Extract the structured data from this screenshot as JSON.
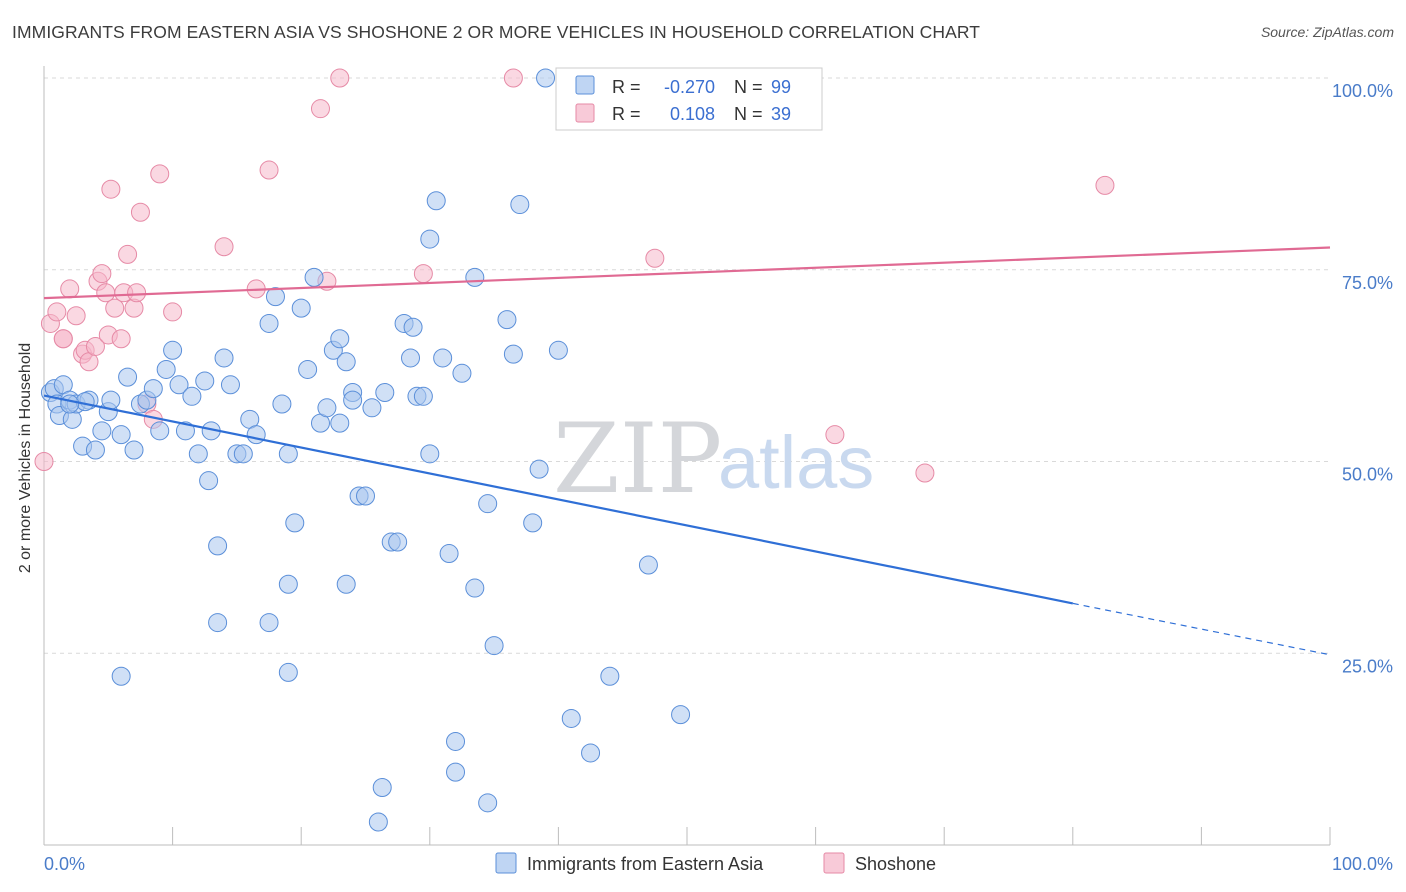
{
  "header": {
    "title": "IMMIGRANTS FROM EASTERN ASIA VS SHOSHONE 2 OR MORE VEHICLES IN HOUSEHOLD CORRELATION CHART",
    "source": "Source: ZipAtlas.com"
  },
  "watermark": {
    "zip": "ZIP",
    "atlas": "atlas"
  },
  "colors": {
    "blue_fill": "#a9c7ef",
    "blue_stroke": "#5b8fd9",
    "blue_line": "#2f6fd6",
    "pink_fill": "#f5b8cb",
    "pink_stroke": "#e68aa6",
    "pink_line": "#e06a93",
    "grid": "#d9d9d9",
    "tick_text": "#4a7cc9"
  },
  "legend_stats": {
    "rows": [
      {
        "r_label": "R =",
        "r_value": "-0.270",
        "n_label": "N =",
        "n_value": "99"
      },
      {
        "r_label": "R =",
        "r_value": "0.108",
        "n_label": "N =",
        "n_value": "39"
      }
    ]
  },
  "chart_data": {
    "type": "scatter",
    "title": "IMMIGRANTS FROM EASTERN ASIA VS SHOSHONE 2 OR MORE VEHICLES IN HOUSEHOLD CORRELATION CHART",
    "xlabel": "",
    "ylabel": "2 or more Vehicles in Household",
    "xlim": [
      0,
      100
    ],
    "ylim": [
      0,
      100
    ],
    "x_tick_labels": [
      "0.0%",
      "100.0%"
    ],
    "y_tick_values": [
      25,
      50,
      75,
      100
    ],
    "y_tick_labels": [
      "25.0%",
      "50.0%",
      "75.0%",
      "100.0%"
    ],
    "grid": "horizontal dashed",
    "legend_placement": "bottom",
    "series": [
      {
        "name": "Immigrants from Eastern Asia",
        "color": "#a9c7ef",
        "r": -0.27,
        "n": 99,
        "trend": {
          "x0": 0,
          "y0": 58.6,
          "x1": 80,
          "y1": 31.5,
          "dashed_to_x": 100,
          "dashed_to_y": 24.8
        },
        "points": [
          [
            0.5,
            59
          ],
          [
            0.8,
            59.5
          ],
          [
            1.0,
            57.5
          ],
          [
            1.2,
            56
          ],
          [
            1.5,
            60
          ],
          [
            2.0,
            58
          ],
          [
            2.2,
            55.5
          ],
          [
            2.5,
            57.5
          ],
          [
            3.0,
            52
          ],
          [
            3.5,
            58
          ],
          [
            3.2,
            57.8
          ],
          [
            4.0,
            51.5
          ],
          [
            4.5,
            54
          ],
          [
            5.0,
            56.5
          ],
          [
            5.2,
            58
          ],
          [
            6.0,
            53.5
          ],
          [
            6.5,
            61
          ],
          [
            7.0,
            51.5
          ],
          [
            7.5,
            57.5
          ],
          [
            8.0,
            58
          ],
          [
            8.5,
            59.5
          ],
          [
            9.0,
            54
          ],
          [
            9.5,
            62
          ],
          [
            10.0,
            64.5
          ],
          [
            10.5,
            60
          ],
          [
            11.0,
            54
          ],
          [
            11.5,
            58.5
          ],
          [
            12.0,
            51
          ],
          [
            12.5,
            60.5
          ],
          [
            12.8,
            47.5
          ],
          [
            13.0,
            54
          ],
          [
            13.5,
            39
          ],
          [
            14.0,
            63.5
          ],
          [
            14.5,
            60
          ],
          [
            15.0,
            51
          ],
          [
            15.5,
            51
          ],
          [
            16.0,
            55.5
          ],
          [
            16.5,
            53.5
          ],
          [
            17.5,
            68
          ],
          [
            18.0,
            71.5
          ],
          [
            18.5,
            57.5
          ],
          [
            19.0,
            51
          ],
          [
            19.0,
            34
          ],
          [
            19.5,
            42
          ],
          [
            20.0,
            70
          ],
          [
            20.5,
            62
          ],
          [
            21.0,
            74
          ],
          [
            21.5,
            55
          ],
          [
            22.0,
            57
          ],
          [
            22.5,
            64.5
          ],
          [
            23.0,
            66
          ],
          [
            23.5,
            34
          ],
          [
            23.5,
            63
          ],
          [
            24.0,
            59
          ],
          [
            24.5,
            45.5
          ],
          [
            25.0,
            45.5
          ],
          [
            25.5,
            57
          ],
          [
            26.0,
            3
          ],
          [
            26.3,
            7.5
          ],
          [
            26.5,
            59
          ],
          [
            27.0,
            39.5
          ],
          [
            27.5,
            39.5
          ],
          [
            28.0,
            68
          ],
          [
            28.5,
            63.5
          ],
          [
            28.7,
            67.5
          ],
          [
            29.0,
            58.5
          ],
          [
            29.5,
            58.5
          ],
          [
            30.0,
            51
          ],
          [
            30.5,
            84
          ],
          [
            30.0,
            79
          ],
          [
            31.0,
            63.5
          ],
          [
            31.5,
            38
          ],
          [
            32.0,
            13.5
          ],
          [
            32.0,
            9.5
          ],
          [
            32.5,
            61.5
          ],
          [
            33.5,
            33.5
          ],
          [
            33.5,
            74
          ],
          [
            34.5,
            5.5
          ],
          [
            34.5,
            44.5
          ],
          [
            35.0,
            26
          ],
          [
            36.0,
            68.5
          ],
          [
            36.5,
            64
          ],
          [
            37.0,
            83.5
          ],
          [
            38.0,
            42
          ],
          [
            38.5,
            49
          ],
          [
            39.0,
            100
          ],
          [
            40.0,
            64.5
          ],
          [
            41.0,
            16.5
          ],
          [
            42.5,
            12
          ],
          [
            44.0,
            22
          ],
          [
            47.0,
            36.5
          ],
          [
            49.5,
            17
          ],
          [
            2.0,
            57.5
          ],
          [
            6.0,
            22
          ],
          [
            13.5,
            29
          ],
          [
            17.5,
            29
          ],
          [
            19.0,
            22.5
          ],
          [
            24.0,
            58
          ],
          [
            23.0,
            55
          ]
        ]
      },
      {
        "name": "Shoshone",
        "color": "#f5b8cb",
        "r": 0.108,
        "n": 39,
        "trend": {
          "x0": 0,
          "y0": 71.3,
          "x1": 100,
          "y1": 77.9
        },
        "points": [
          [
            0.0,
            50
          ],
          [
            0.5,
            68
          ],
          [
            1.0,
            69.5
          ],
          [
            1.5,
            66
          ],
          [
            2.0,
            72.5
          ],
          [
            2.5,
            69
          ],
          [
            3.0,
            64
          ],
          [
            3.2,
            64.5
          ],
          [
            3.5,
            63
          ],
          [
            4.0,
            65
          ],
          [
            4.2,
            73.5
          ],
          [
            4.5,
            74.5
          ],
          [
            4.8,
            72
          ],
          [
            5.0,
            66.5
          ],
          [
            5.2,
            85.5
          ],
          [
            5.5,
            70
          ],
          [
            6.0,
            66
          ],
          [
            6.2,
            72
          ],
          [
            6.5,
            77
          ],
          [
            7.0,
            70
          ],
          [
            7.2,
            72
          ],
          [
            7.5,
            82.5
          ],
          [
            8.0,
            57.5
          ],
          [
            8.5,
            55.5
          ],
          [
            9.0,
            87.5
          ],
          [
            10.0,
            69.5
          ],
          [
            14.0,
            78
          ],
          [
            16.5,
            72.5
          ],
          [
            17.5,
            88
          ],
          [
            21.5,
            96
          ],
          [
            22.0,
            73.5
          ],
          [
            23.0,
            100
          ],
          [
            29.5,
            74.5
          ],
          [
            36.5,
            100
          ],
          [
            47.5,
            76.5
          ],
          [
            61.5,
            53.5
          ],
          [
            68.5,
            48.5
          ],
          [
            82.5,
            86
          ],
          [
            1.5,
            66
          ]
        ]
      }
    ]
  },
  "legend": {
    "items": [
      {
        "label": "Immigrants from Eastern Asia"
      },
      {
        "label": "Shoshone"
      }
    ]
  }
}
